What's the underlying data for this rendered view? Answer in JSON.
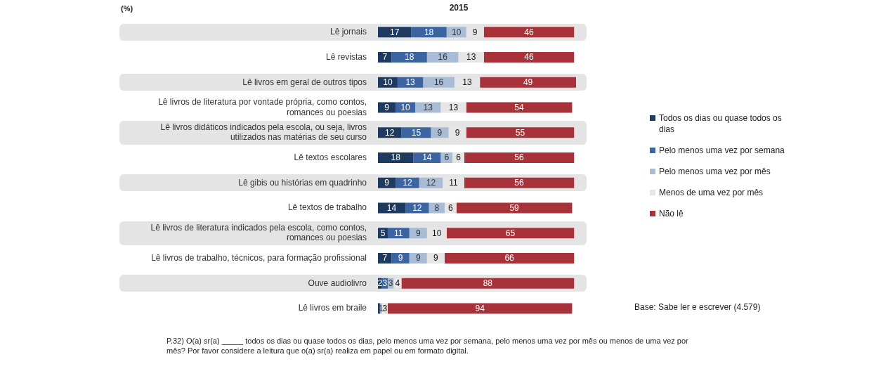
{
  "chart_data": {
    "type": "bar",
    "orientation": "horizontal",
    "stacked": true,
    "title": "2015",
    "categories": [
      "Lê jornais",
      "Lê revistas",
      "Lê livros em geral de outros tipos",
      "Lê livros de literatura por vontade própria, como contos, romances ou poesias",
      "Lê livros didáticos indicados pela escola, ou seja, livros utilizados nas matérias de seu curso",
      "Lê textos escolares",
      "Lê gibis ou histórias em quadrinho",
      "Lê textos de trabalho",
      "Lê livros de literatura indicados pela escola, como contos, romances ou poesias",
      "Lê livros de trabalho, técnicos, para formação profissional",
      "Ouve audiolivro",
      "Lê livros em braile"
    ],
    "series": [
      {
        "name": "Todos os dias ou quase todos os dias",
        "color": "#1f3a5f",
        "values": [
          17,
          7,
          10,
          9,
          12,
          18,
          9,
          14,
          5,
          7,
          2,
          1
        ],
        "value_labels": [
          "17",
          "7",
          "10",
          "9",
          "12",
          "18",
          "9",
          "14",
          "5",
          "7",
          "2",
          null
        ]
      },
      {
        "name": "Pelo menos uma vez por semana",
        "color": "#3c64a0",
        "values": [
          18,
          18,
          13,
          10,
          15,
          14,
          12,
          12,
          11,
          9,
          3,
          null
        ],
        "value_labels": [
          "18",
          "18",
          "13",
          "10",
          "15",
          "14",
          "12",
          "12",
          "11",
          "9",
          "3",
          null
        ]
      },
      {
        "name": "Pelo menos uma vez por mês",
        "color": "#a9bcd6",
        "values": [
          10,
          16,
          16,
          13,
          9,
          6,
          12,
          8,
          9,
          9,
          3,
          1
        ],
        "value_labels": [
          "10",
          "16",
          "16",
          "13",
          "9",
          "6",
          "12",
          "8",
          "9",
          "9",
          "3",
          "1"
        ]
      },
      {
        "name": "Menos de uma vez por mês",
        "color": "#e6e6e6",
        "values": [
          9,
          13,
          13,
          13,
          9,
          6,
          11,
          6,
          10,
          9,
          4,
          3
        ],
        "value_labels": [
          "9",
          "13",
          "13",
          "13",
          "9",
          "6",
          "11",
          "6",
          "10",
          "9",
          "4",
          "3"
        ]
      },
      {
        "name": "Não lê",
        "color": "#a8323a",
        "values": [
          46,
          46,
          49,
          54,
          55,
          56,
          56,
          59,
          65,
          66,
          88,
          94
        ],
        "value_labels": [
          "46",
          "46",
          "49",
          "54",
          "55",
          "56",
          "56",
          "59",
          "65",
          "66",
          "88",
          "94"
        ]
      }
    ],
    "xlim": [
      0,
      101
    ],
    "tick_labels": "y",
    "legend": "right",
    "annotations": [
      "(%)",
      "Base: Sabe ler e escrever (4.579)",
      "P.32) O(a) sr(a) _____ todos os dias ou quase todos os dias, pelo menos uma vez por semana, pelo menos uma vez por mês ou menos de uma vez por mês? Por favor considere a leitura que o(a) sr(a) realiza em papel ou em formato digital."
    ]
  }
}
